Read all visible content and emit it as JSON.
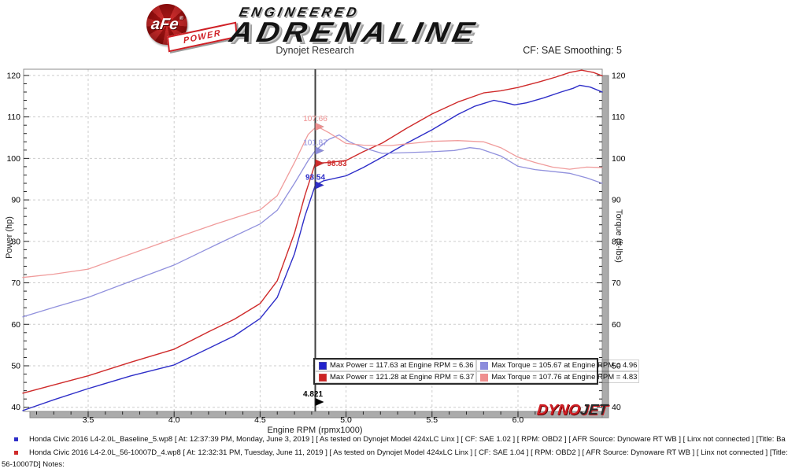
{
  "header": {
    "brand": {
      "afe": "aFe",
      "reg": "®",
      "power": "POWER",
      "line1": "ENGINEERED",
      "line2": "ADRENALINE"
    },
    "title": "Dynojet Research",
    "smoothing": "CF: SAE Smoothing: 5"
  },
  "chart_data": {
    "type": "line",
    "title": "Dynojet Research",
    "xlabel": "Engine RPM (rpmx1000)",
    "ylabel_left": "Power (hp)",
    "ylabel_right": "Torque (ft-lbs)",
    "xlim": [
      3.1245,
      6.49
    ],
    "ylim": [
      39,
      121.5
    ],
    "x_major_ticks": [
      3.5,
      4.0,
      4.5,
      5.0,
      5.5,
      6.0
    ],
    "x_minor_step": 0.1,
    "y_major_ticks": [
      40,
      50,
      60,
      70,
      80,
      90,
      100,
      110,
      120
    ],
    "y_minor_step": 2,
    "grid": "dashed",
    "grid_color": "#cdcdcd",
    "legend_position": "bottom-center",
    "series": [
      {
        "name": "Power Baseline",
        "color": "#2e2ec8",
        "width": 1.4,
        "max": {
          "value": 117.63,
          "rpm": 6.36
        },
        "values": [
          [
            3.12,
            39.2
          ],
          [
            3.3,
            41.8
          ],
          [
            3.5,
            44.5
          ],
          [
            3.75,
            47.6
          ],
          [
            4.0,
            50.2
          ],
          [
            4.2,
            54.2
          ],
          [
            4.35,
            57.2
          ],
          [
            4.5,
            61.4
          ],
          [
            4.6,
            66.5
          ],
          [
            4.7,
            77.0
          ],
          [
            4.76,
            86.0
          ],
          [
            4.821,
            93.54
          ],
          [
            4.87,
            94.6
          ],
          [
            5.0,
            95.8
          ],
          [
            5.1,
            97.8
          ],
          [
            5.21,
            100.3
          ],
          [
            5.35,
            103.6
          ],
          [
            5.5,
            106.9
          ],
          [
            5.65,
            110.6
          ],
          [
            5.75,
            112.6
          ],
          [
            5.86,
            114.0
          ],
          [
            5.93,
            113.4
          ],
          [
            5.98,
            112.9
          ],
          [
            6.05,
            113.4
          ],
          [
            6.15,
            114.6
          ],
          [
            6.25,
            116.0
          ],
          [
            6.32,
            116.9
          ],
          [
            6.36,
            117.63
          ],
          [
            6.42,
            117.2
          ],
          [
            6.49,
            116.0
          ]
        ]
      },
      {
        "name": "Power 56-10007D",
        "color": "#cf2b2b",
        "width": 1.4,
        "max": {
          "value": 121.28,
          "rpm": 6.37
        },
        "values": [
          [
            3.12,
            43.4
          ],
          [
            3.3,
            45.4
          ],
          [
            3.5,
            47.6
          ],
          [
            3.75,
            50.9
          ],
          [
            4.0,
            54.0
          ],
          [
            4.2,
            58.2
          ],
          [
            4.35,
            61.2
          ],
          [
            4.5,
            65.0
          ],
          [
            4.6,
            70.5
          ],
          [
            4.7,
            82.0
          ],
          [
            4.76,
            91.0
          ],
          [
            4.821,
            98.83
          ],
          [
            4.9,
            99.0
          ],
          [
            5.0,
            99.5
          ],
          [
            5.1,
            101.6
          ],
          [
            5.21,
            103.7
          ],
          [
            5.35,
            107.2
          ],
          [
            5.5,
            110.7
          ],
          [
            5.65,
            113.6
          ],
          [
            5.8,
            115.8
          ],
          [
            5.9,
            116.3
          ],
          [
            6.0,
            117.1
          ],
          [
            6.12,
            118.4
          ],
          [
            6.22,
            119.6
          ],
          [
            6.3,
            120.7
          ],
          [
            6.37,
            121.28
          ],
          [
            6.44,
            120.7
          ],
          [
            6.49,
            119.9
          ]
        ]
      },
      {
        "name": "Torque Baseline",
        "color": "#9191dd",
        "width": 1.3,
        "max": {
          "value": 105.67,
          "rpm": 4.96
        },
        "values": [
          [
            3.12,
            61.8
          ],
          [
            3.3,
            64.1
          ],
          [
            3.5,
            66.5
          ],
          [
            3.75,
            70.4
          ],
          [
            4.0,
            74.3
          ],
          [
            4.25,
            79.3
          ],
          [
            4.5,
            84.2
          ],
          [
            4.6,
            87.5
          ],
          [
            4.7,
            94.0
          ],
          [
            4.78,
            99.5
          ],
          [
            4.821,
            101.87
          ],
          [
            4.9,
            104.6
          ],
          [
            4.96,
            105.67
          ],
          [
            5.02,
            104.0
          ],
          [
            5.1,
            102.6
          ],
          [
            5.21,
            101.2
          ],
          [
            5.35,
            101.4
          ],
          [
            5.5,
            101.6
          ],
          [
            5.63,
            101.9
          ],
          [
            5.72,
            102.6
          ],
          [
            5.78,
            102.3
          ],
          [
            5.9,
            100.6
          ],
          [
            6.0,
            98.1
          ],
          [
            6.1,
            97.3
          ],
          [
            6.19,
            96.9
          ],
          [
            6.3,
            96.4
          ],
          [
            6.4,
            95.3
          ],
          [
            6.49,
            94.0
          ]
        ]
      },
      {
        "name": "Torque 56-10007D",
        "color": "#f09c9c",
        "width": 1.3,
        "max": {
          "value": 107.76,
          "rpm": 4.83
        },
        "values": [
          [
            3.12,
            71.3
          ],
          [
            3.3,
            72.1
          ],
          [
            3.5,
            73.3
          ],
          [
            3.75,
            77.0
          ],
          [
            4.0,
            80.7
          ],
          [
            4.25,
            84.3
          ],
          [
            4.5,
            87.6
          ],
          [
            4.6,
            91.0
          ],
          [
            4.7,
            99.0
          ],
          [
            4.78,
            105.8
          ],
          [
            4.83,
            107.76
          ],
          [
            4.9,
            106.2
          ],
          [
            5.0,
            103.6
          ],
          [
            5.1,
            103.2
          ],
          [
            5.26,
            103.1
          ],
          [
            5.4,
            103.7
          ],
          [
            5.5,
            104.1
          ],
          [
            5.65,
            104.3
          ],
          [
            5.8,
            104.0
          ],
          [
            5.9,
            102.6
          ],
          [
            6.0,
            100.3
          ],
          [
            6.1,
            99.0
          ],
          [
            6.2,
            97.9
          ],
          [
            6.3,
            97.4
          ],
          [
            6.4,
            97.9
          ],
          [
            6.49,
            97.8
          ]
        ]
      }
    ],
    "cursor": {
      "rpm": 4.821,
      "label": "4.821",
      "color": "#3f3f3f",
      "readouts": [
        {
          "label": "107.66",
          "value": 107.66,
          "color": "#ef8f8f",
          "placement": "above",
          "bold": false
        },
        {
          "label": "101.87",
          "value": 101.87,
          "color": "#8c8cdc",
          "placement": "above",
          "bold": false
        },
        {
          "label": "98.83",
          "value": 98.83,
          "color": "#cf2b2b",
          "placement": "right",
          "bold": true
        },
        {
          "label": "93.54",
          "value": 93.54,
          "color": "#2e2ec8",
          "placement": "above",
          "bold": true
        }
      ]
    }
  },
  "legend": {
    "entries": [
      {
        "swatch": "#2222cc",
        "border": "#4444aa",
        "text": "Max Power = 117.63 at Engine RPM = 6.36"
      },
      {
        "swatch": "#8c8cdc",
        "border": "#8c8cdc",
        "text": "Max Torque = 105.67 at Engine RPM = 4.96"
      },
      {
        "swatch": "#cc2222",
        "border": "#cc4444",
        "text": "Max Power = 121.28 at Engine RPM = 6.37"
      },
      {
        "swatch": "#ef8f8f",
        "border": "#ef8f8f",
        "text": "Max Torque = 107.76 at Engine RPM = 4.83"
      }
    ]
  },
  "watermark": {
    "dyno": "DYNO",
    "jet": "JET"
  },
  "footer": {
    "rows": [
      {
        "bullet": "#2e2ec8",
        "text": "Honda Civic 2016 L4-2.0L_Baseline_5.wp8 [ At: 12:37:39 PM, Monday, June 3, 2019 ] [ As tested on Dynojet Model 424xLC Linx ] [ CF: SAE 1.02 ] [ RPM: OBD2 ] [ AFR Source: Dynoware RT WB ] [ Linx not connected ] [Title: Ba"
      },
      {
        "bullet": "#cf2b2b",
        "text": "Honda Civic 2016 L4-2.0L_56-10007D_4.wp8 [ At: 12:32:31 PM, Tuesday, June 11, 2019 ] [ As tested on Dynojet Model 424xLC Linx ] [ CF: SAE 1.04 ] [ RPM: OBD2 ] [ AFR Source: Dynoware RT WB ] [ Linx not connected ] [Title:"
      },
      {
        "bullet": "",
        "text": "56-10007D] Notes:"
      }
    ]
  }
}
